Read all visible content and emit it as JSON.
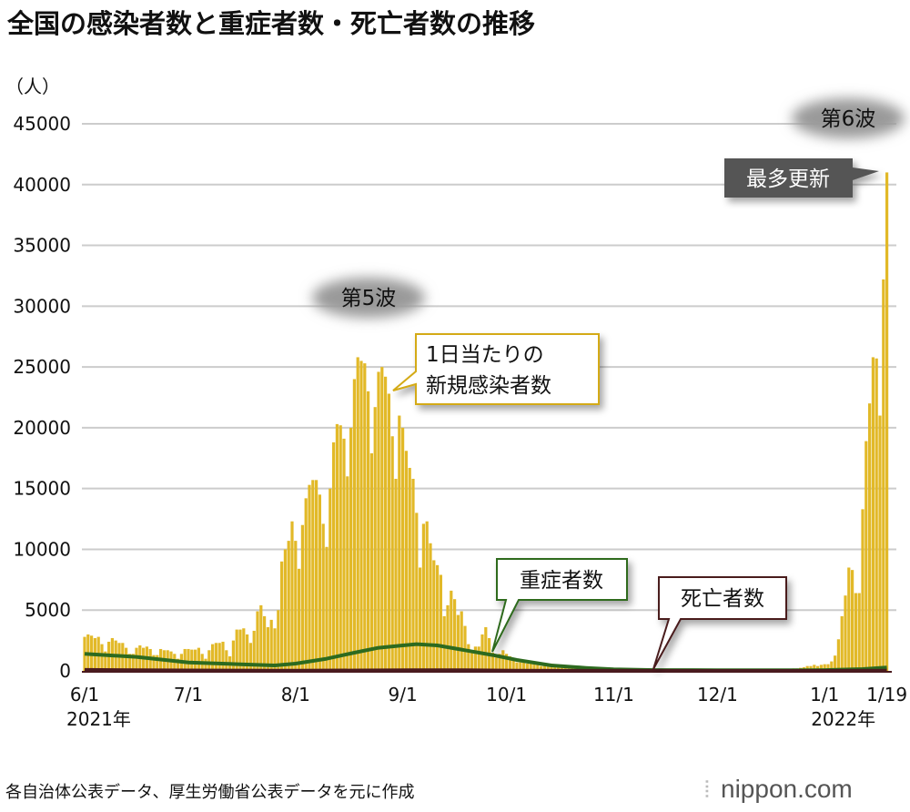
{
  "title": "全国の感染者数と重症者数・死亡者数の推移",
  "footer": "各自治体公表データ、厚生労働省公表データを元に作成",
  "logo": "nippon.com",
  "chart_data": {
    "type": "bar",
    "title": "全国の感染者数と重症者数・死亡者数の推移",
    "ylabel": "（人）",
    "ylim": [
      0,
      45000
    ],
    "yticks": [
      "0",
      "5000",
      "10000",
      "15000",
      "20000",
      "25000",
      "30000",
      "35000",
      "40000",
      "45000"
    ],
    "ytick_values": [
      0,
      5000,
      10000,
      15000,
      20000,
      25000,
      30000,
      35000,
      40000,
      45000
    ],
    "grid": true,
    "start_date": "2021-06-01",
    "end_date": "2022-01-19",
    "xticks": [
      {
        "label": "6/1",
        "day": 0
      },
      {
        "label": "7/1",
        "day": 30
      },
      {
        "label": "8/1",
        "day": 61
      },
      {
        "label": "9/1",
        "day": 92
      },
      {
        "label": "10/1",
        "day": 122
      },
      {
        "label": "11/1",
        "day": 153
      },
      {
        "label": "12/1",
        "day": 183
      },
      {
        "label": "1/1",
        "day": 214
      },
      {
        "label": "1/19",
        "day": 232
      }
    ],
    "year_labels": [
      {
        "label": "2021年",
        "day": 0
      },
      {
        "label": "2022年",
        "day": 214
      }
    ],
    "colors": {
      "cases": "#e2b928",
      "severe": "#2d6a1f",
      "deaths": "#4a1a1e",
      "grid": "#cccccc"
    },
    "series": [
      {
        "name": "1日当たりの新規感染者数",
        "kind": "bar",
        "values": [
          2800,
          3000,
          2900,
          2700,
          2800,
          2200,
          1600,
          2400,
          2700,
          2500,
          2300,
          2300,
          1900,
          1400,
          1400,
          1900,
          2100,
          1900,
          2000,
          1800,
          1300,
          1300,
          1800,
          1700,
          1700,
          1600,
          1400,
          1000,
          1400,
          1800,
          1800,
          1750,
          1750,
          1900,
          1400,
          1000,
          1700,
          2200,
          2300,
          2300,
          2400,
          1700,
          1200,
          2500,
          3400,
          3400,
          3500,
          3000,
          2300,
          3300,
          4900,
          5400,
          4500,
          3600,
          4200,
          3500,
          5000,
          9000,
          10000,
          10700,
          12300,
          10700,
          8400,
          12000,
          14200,
          15300,
          15700,
          15700,
          14500,
          12100,
          10200,
          15000,
          18800,
          20300,
          20200,
          19100,
          16000,
          20000,
          24000,
          25800,
          25500,
          25300,
          23000,
          17900,
          21700,
          24600,
          25000,
          24200,
          22800,
          19300,
          15800,
          21000,
          20000,
          18100,
          16700,
          15800,
          13000,
          8500,
          12100,
          12300,
          10500,
          9100,
          8700,
          7900,
          4500,
          5400,
          6600,
          5900,
          4600,
          4900,
          3700,
          2200,
          1600,
          2000,
          2000,
          3000,
          3600,
          2700,
          1500,
          1100,
          1400,
          1700,
          1400,
          1200,
          1000,
          700,
          700,
          800,
          600,
          700,
          600,
          500,
          400,
          500,
          500,
          600,
          500,
          400,
          400,
          300,
          300,
          400,
          400,
          300,
          300,
          250,
          200,
          250,
          250,
          300,
          250,
          200,
          150,
          150,
          100,
          150,
          150,
          150,
          150,
          100,
          100,
          150,
          200,
          150,
          150,
          150,
          100,
          100,
          150,
          150,
          150,
          150,
          100,
          100,
          50,
          100,
          100,
          150,
          150,
          100,
          100,
          150,
          150,
          150,
          150,
          150,
          100,
          150,
          150,
          100,
          100,
          150,
          150,
          150,
          100,
          100,
          100,
          150,
          150,
          150,
          150,
          150,
          100,
          100,
          150,
          200,
          200,
          250,
          300,
          400,
          400,
          500,
          400,
          500,
          550,
          550,
          780,
          1260,
          2600,
          4500,
          6200,
          8500,
          8300,
          6400,
          6400,
          13300,
          18900,
          22000,
          25800,
          25700,
          21000,
          32200,
          41000
        ]
      },
      {
        "name": "重症者数",
        "kind": "line",
        "points": [
          [
            0,
            1400
          ],
          [
            15,
            1150
          ],
          [
            30,
            700
          ],
          [
            45,
            550
          ],
          [
            55,
            450
          ],
          [
            61,
            600
          ],
          [
            70,
            1000
          ],
          [
            78,
            1500
          ],
          [
            85,
            1900
          ],
          [
            92,
            2100
          ],
          [
            96,
            2200
          ],
          [
            102,
            2100
          ],
          [
            110,
            1700
          ],
          [
            118,
            1300
          ],
          [
            125,
            900
          ],
          [
            135,
            450
          ],
          [
            145,
            250
          ],
          [
            153,
            130
          ],
          [
            165,
            70
          ],
          [
            183,
            60
          ],
          [
            205,
            50
          ],
          [
            214,
            70
          ],
          [
            225,
            150
          ],
          [
            232,
            280
          ]
        ]
      },
      {
        "name": "死亡者数",
        "kind": "line",
        "points": [
          [
            0,
            80
          ],
          [
            30,
            40
          ],
          [
            61,
            15
          ],
          [
            80,
            40
          ],
          [
            95,
            60
          ],
          [
            110,
            50
          ],
          [
            125,
            25
          ],
          [
            153,
            5
          ],
          [
            214,
            3
          ],
          [
            232,
            15
          ]
        ]
      }
    ],
    "annotations": {
      "wave5": "第5波",
      "wave6": "第6波",
      "record": "最多更新",
      "cases_label_1": "1日当たりの",
      "cases_label_2": "新規感染者数",
      "severe_label": "重症者数",
      "deaths_label": "死亡者数"
    }
  }
}
